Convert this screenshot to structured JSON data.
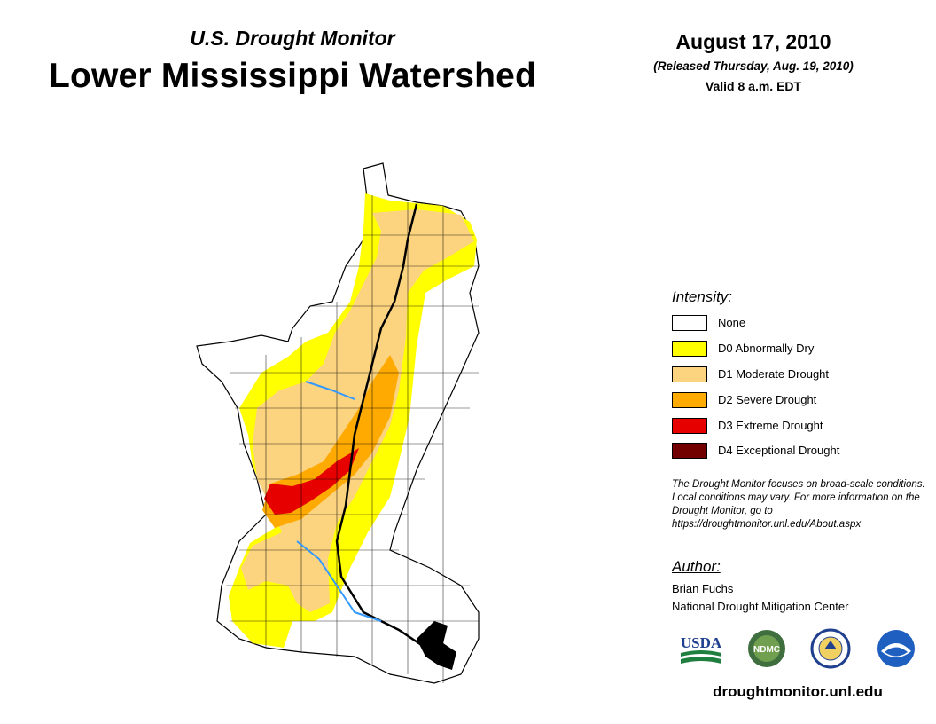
{
  "header": {
    "subtitle": "U.S. Drought Monitor",
    "title": "Lower Mississippi Watershed",
    "date": "August 17, 2010",
    "released": "(Released Thursday, Aug. 19, 2010)",
    "valid": "Valid 8 a.m. EDT"
  },
  "legend": {
    "heading": "Intensity:",
    "items": [
      {
        "label": "None",
        "color": "#ffffff"
      },
      {
        "label": "D0 Abnormally Dry",
        "color": "#ffff00"
      },
      {
        "label": "D1 Moderate Drought",
        "color": "#fcd37f"
      },
      {
        "label": "D2 Severe Drought",
        "color": "#ffaa00"
      },
      {
        "label": "D3 Extreme Drought",
        "color": "#e60000"
      },
      {
        "label": "D4 Exceptional Drought",
        "color": "#730000"
      }
    ]
  },
  "note": "The Drought Monitor focuses on broad-scale conditions. Local conditions may vary. For more information on the Drought Monitor, go to https://droughtmonitor.unl.edu/About.aspx",
  "author": {
    "heading": "Author:",
    "name": "Brian Fuchs",
    "organization": "National Drought Mitigation Center"
  },
  "logos": {
    "usda": "USDA",
    "ndmc": "NDMC",
    "commerce": "commerce-seal",
    "noaa": "NOAA"
  },
  "website": "droughtmonitor.unl.edu",
  "map": {
    "river_color": "#3399ff",
    "water_color": "#000000"
  }
}
